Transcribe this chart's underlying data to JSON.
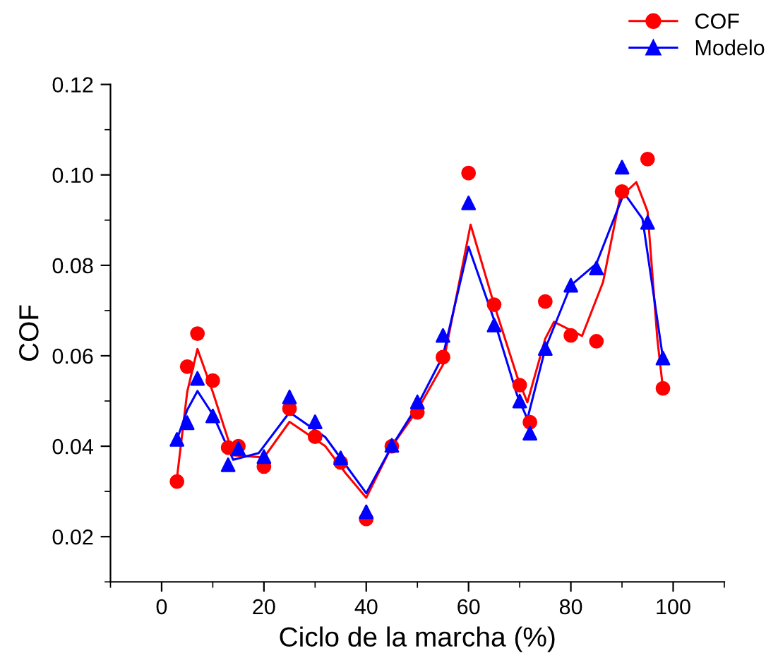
{
  "chart_data": {
    "type": "scatter",
    "xlabel": "Ciclo de la marcha (%)",
    "ylabel": "COF",
    "xlim": [
      -10,
      110
    ],
    "xticks": [
      0,
      20,
      40,
      60,
      80,
      100
    ],
    "ylim": [
      0.01,
      0.12
    ],
    "yticks": [
      0.02,
      0.04,
      0.06,
      0.08,
      {
        "value": 0.1,
        "label": "0.10"
      },
      0.12
    ],
    "legend": "top right",
    "grid": false,
    "series": [
      {
        "name": "COF",
        "color": "#ff0000",
        "marker": "circle",
        "x": [
          3,
          5,
          7,
          10,
          13,
          15,
          20,
          25,
          30,
          35,
          40,
          45,
          50,
          55,
          60,
          65,
          70,
          72,
          75,
          80,
          85,
          90,
          95,
          98
        ],
        "values": [
          0.0322,
          0.0576,
          0.0649,
          0.0545,
          0.0397,
          0.04,
          0.0355,
          0.0483,
          0.0421,
          0.0364,
          0.0239,
          0.04,
          0.0475,
          0.0597,
          0.1004,
          0.0713,
          0.0535,
          0.0453,
          0.072,
          0.0645,
          0.0632,
          0.0963,
          0.1035,
          0.0528
        ]
      },
      {
        "name": "Modelo",
        "color": "#0000ff",
        "marker": "triangle",
        "x": [
          3,
          5,
          7,
          10,
          13,
          15,
          20,
          25,
          30,
          35,
          40,
          45,
          50,
          55,
          60,
          65,
          70,
          72,
          75,
          80,
          85,
          90,
          95,
          98
        ],
        "values": [
          0.0415,
          0.0452,
          0.055,
          0.0467,
          0.0359,
          0.0395,
          0.0377,
          0.0509,
          0.0454,
          0.0374,
          0.0255,
          0.0402,
          0.0498,
          0.0645,
          0.0938,
          0.0668,
          0.05,
          0.0429,
          0.0616,
          0.0756,
          0.0794,
          0.1017,
          0.0895,
          0.0595
        ]
      },
      {
        "type": "line",
        "color": "#ff0000",
        "marker": "none",
        "line_style": "solid",
        "x": [
          3,
          5,
          7,
          10,
          14,
          20,
          25,
          32,
          36,
          40,
          45,
          50,
          55,
          60.4,
          65,
          69.5,
          71.5,
          75,
          76.7,
          82.2,
          86.3,
          89.6,
          92.8,
          95,
          96.9,
          98
        ],
        "values": [
          0.033,
          0.052,
          0.0615,
          0.052,
          0.038,
          0.0375,
          0.0454,
          0.04,
          0.034,
          0.0286,
          0.04,
          0.048,
          0.058,
          0.089,
          0.0713,
          0.0554,
          0.0497,
          0.0638,
          0.0675,
          0.0644,
          0.0763,
          0.095,
          0.0984,
          0.0919,
          0.0638,
          0.0528
        ]
      },
      {
        "type": "line",
        "color": "#0000ff",
        "marker": "none",
        "line_style": "solid",
        "x": [
          3,
          5,
          7,
          10,
          14,
          19,
          25,
          32,
          40,
          45,
          50,
          55,
          60,
          65,
          69.5,
          71.5,
          75,
          80,
          85,
          90.4,
          94,
          98
        ],
        "values": [
          0.0415,
          0.048,
          0.0522,
          0.047,
          0.037,
          0.0385,
          0.0475,
          0.042,
          0.0296,
          0.04,
          0.049,
          0.06,
          0.0841,
          0.0679,
          0.0513,
          0.046,
          0.0616,
          0.0756,
          0.0804,
          0.096,
          0.0903,
          0.0595
        ]
      }
    ]
  }
}
